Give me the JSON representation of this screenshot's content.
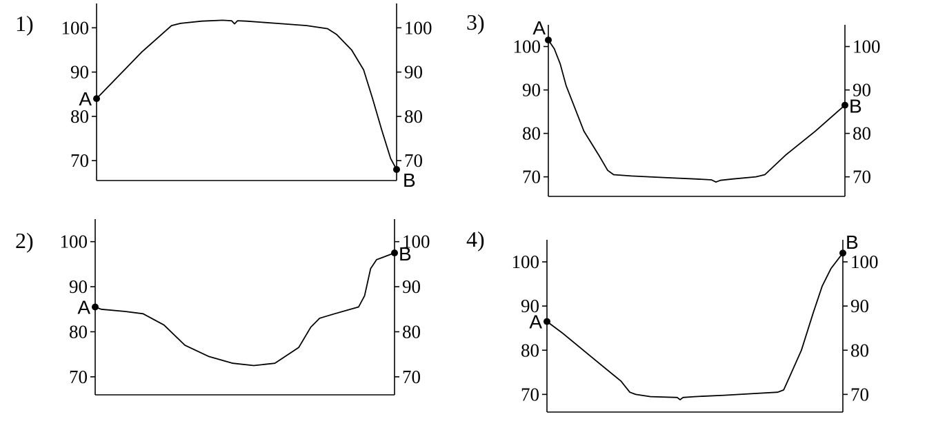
{
  "chart_data": [
    {
      "type": "line",
      "label": "1)",
      "ylim": [
        65.5,
        105.5
      ],
      "yticks": [
        70,
        80,
        90,
        100
      ],
      "x": [
        0,
        0.05,
        0.1,
        0.15,
        0.2,
        0.25,
        0.28,
        0.35,
        0.42,
        0.45,
        0.46,
        0.47,
        0.5,
        0.6,
        0.7,
        0.77,
        0.8,
        0.85,
        0.89,
        0.92,
        0.95,
        0.98,
        1
      ],
      "y": [
        84,
        87.5,
        91,
        94.5,
        97.5,
        100.5,
        101,
        101.5,
        101.7,
        101.6,
        100.9,
        101.6,
        101.5,
        101,
        100.5,
        99.8,
        98.5,
        95,
        90.5,
        84,
        77,
        70.5,
        68
      ],
      "point_a": {
        "label": "A",
        "value": 84
      },
      "point_b": {
        "label": "B",
        "value": 68
      }
    },
    {
      "type": "line",
      "label": "2)",
      "ylim": [
        66,
        105
      ],
      "yticks": [
        70,
        80,
        90,
        100
      ],
      "x": [
        0,
        0.02,
        0.1,
        0.16,
        0.23,
        0.3,
        0.38,
        0.46,
        0.53,
        0.6,
        0.68,
        0.72,
        0.75,
        0.8,
        0.88,
        0.9,
        0.92,
        0.94,
        0.96,
        1
      ],
      "y": [
        85.5,
        85,
        84.5,
        84,
        81.5,
        77,
        74.5,
        73,
        72.5,
        73,
        76.5,
        81,
        83,
        84,
        85.5,
        88,
        94,
        96,
        96.5,
        97.5
      ],
      "point_a": {
        "label": "A",
        "value": 85.5
      },
      "point_b": {
        "label": "B",
        "value": 97.5
      }
    },
    {
      "type": "line",
      "label": "3)",
      "ylim": [
        65.5,
        105
      ],
      "yticks": [
        70,
        80,
        90,
        100
      ],
      "x": [
        0,
        0.02,
        0.04,
        0.06,
        0.08,
        0.12,
        0.17,
        0.2,
        0.22,
        0.28,
        0.4,
        0.5,
        0.55,
        0.565,
        0.58,
        0.62,
        0.7,
        0.73,
        0.8,
        0.9,
        1
      ],
      "y": [
        101.5,
        99.5,
        96,
        91,
        87.5,
        80.5,
        75,
        71.5,
        70.5,
        70.2,
        69.8,
        69.5,
        69.3,
        68.8,
        69.2,
        69.5,
        70,
        70.5,
        75,
        80.5,
        86.5
      ],
      "point_a": {
        "label": "A",
        "value": 101.5
      },
      "point_b": {
        "label": "B",
        "value": 86.5
      }
    },
    {
      "type": "line",
      "label": "4)",
      "ylim": [
        66,
        105
      ],
      "yticks": [
        70,
        80,
        90,
        100
      ],
      "x": [
        0,
        0.05,
        0.15,
        0.25,
        0.28,
        0.3,
        0.35,
        0.44,
        0.45,
        0.46,
        0.5,
        0.6,
        0.7,
        0.78,
        0.8,
        0.82,
        0.86,
        0.9,
        0.93,
        0.96,
        1
      ],
      "y": [
        86.5,
        84,
        78.5,
        73,
        70.5,
        70,
        69.5,
        69.3,
        68.8,
        69.3,
        69.5,
        69.8,
        70.2,
        70.5,
        71,
        74,
        80,
        88.5,
        94.5,
        98.5,
        102
      ],
      "point_a": {
        "label": "A",
        "value": 86.5
      },
      "point_b": {
        "label": "B",
        "value": 102
      }
    }
  ]
}
